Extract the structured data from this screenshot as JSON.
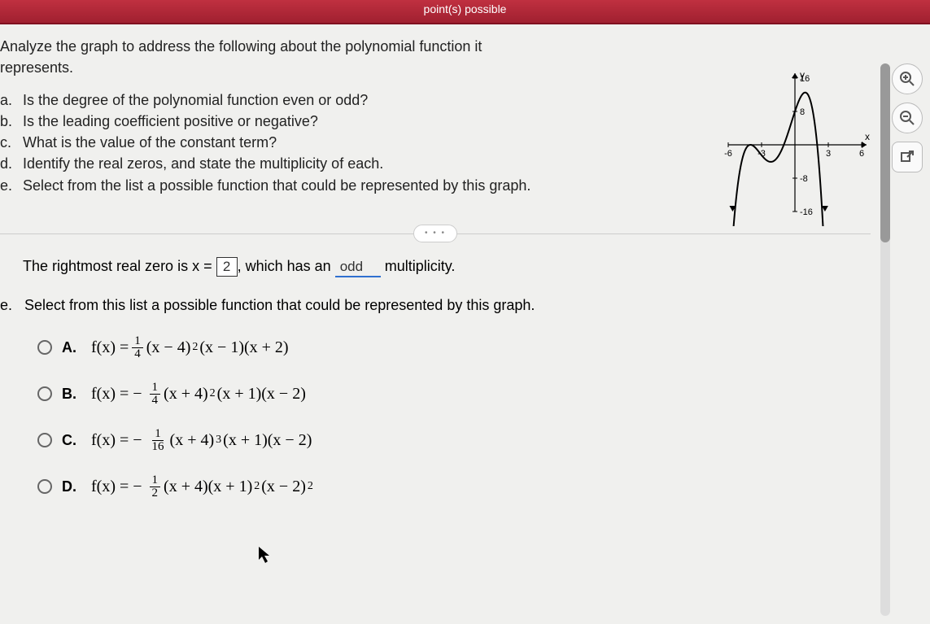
{
  "header": {
    "points_text": "point(s) possible"
  },
  "question": {
    "prompt_line1": "Analyze the graph to address the following about the polynomial function it",
    "prompt_line2": "represents.",
    "parts": [
      {
        "letter": "a.",
        "text": "Is the degree of the polynomial function even or odd?"
      },
      {
        "letter": "b.",
        "text": "Is the leading coefficient positive or negative?"
      },
      {
        "letter": "c.",
        "text": "What is the value of the constant term?"
      },
      {
        "letter": "d.",
        "text": "Identify the real zeros, and state the multiplicity of each."
      },
      {
        "letter": "e.",
        "text": "Select from the list a possible function that could be represented by this graph."
      }
    ]
  },
  "divider": {
    "dots": "• • •"
  },
  "answer": {
    "prefix": "The rightmost real zero is x =",
    "input_value": "2",
    "mid": ", which has an",
    "select_value": "odd",
    "suffix": "multiplicity."
  },
  "part_e": {
    "letter": "e.",
    "text": "Select from this list a possible function that could be represented by this graph."
  },
  "options": [
    {
      "label": "A.",
      "neg": false,
      "num": "1",
      "den": "4",
      "body_pre": "(x − 4)",
      "exp1": "2",
      "body_post": "(x − 1)(x + 2)"
    },
    {
      "label": "B.",
      "neg": true,
      "num": "1",
      "den": "4",
      "body_pre": "(x + 4)",
      "exp1": "2",
      "body_post": "(x + 1)(x − 2)"
    },
    {
      "label": "C.",
      "neg": true,
      "num": "1",
      "den": "16",
      "body_pre": "(x + 4)",
      "exp1": "3",
      "body_post": "(x + 1)(x − 2)"
    },
    {
      "label": "D.",
      "neg": true,
      "num": "1",
      "den": "2",
      "body_pre": "(x + 4)(x + 1)",
      "exp1": "2",
      "body_post": "(x − 2)",
      "exp2": "2"
    }
  ],
  "graph": {
    "x_min": -6,
    "x_max": 6,
    "y_min": -16,
    "y_max": 16,
    "x_ticks": [
      -6,
      -3,
      3,
      6
    ],
    "y_ticks": [
      -16,
      -8,
      8,
      16
    ],
    "x_label": "x",
    "y_label": "y",
    "axis_color": "#000000",
    "tick_color": "#000000",
    "curve_color": "#000000",
    "curve_width": 2,
    "background": "#f0f0ee",
    "zeros": [
      -4,
      -1,
      2
    ],
    "curve_desc": "quartic-like: rises from -inf on left, touches near x=-4 (double), dips, crosses x=-1, rises to local max ~ (0.7, 13), falls through x=2, goes to -inf"
  },
  "tools": {
    "zoom_in": "zoom-in-icon",
    "zoom_out": "zoom-out-icon",
    "popout": "popout-icon"
  }
}
